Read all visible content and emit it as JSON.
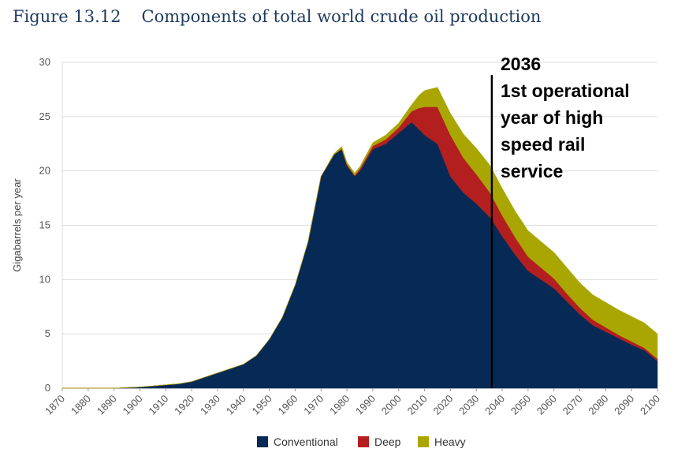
{
  "figure": {
    "number": "Figure 13.12",
    "title": "Components of total world crude oil production"
  },
  "annotation": {
    "lines": [
      "2036",
      "1st operational",
      "year of high",
      "speed rail",
      "service"
    ],
    "marker_year": 2036
  },
  "colors": {
    "conventional": "#062a55",
    "deep": "#b31f1f",
    "heavy": "#aaa601",
    "grid": "#dddddd",
    "title": "#1f3a5f"
  },
  "chart_data": {
    "type": "area",
    "stacked": true,
    "ylabel": "Gigabarrels per year",
    "xlabel": "",
    "ylim": [
      0,
      30
    ],
    "yticks": [
      0,
      5,
      10,
      15,
      20,
      25,
      30
    ],
    "xlim": [
      1870,
      2100
    ],
    "xticks": [
      1870,
      1880,
      1890,
      1900,
      1910,
      1920,
      1930,
      1940,
      1950,
      1960,
      1970,
      1980,
      1990,
      2000,
      2010,
      2020,
      2030,
      2040,
      2050,
      2060,
      2070,
      2080,
      2090,
      2100
    ],
    "grid": true,
    "legend_position": "bottom",
    "x": [
      1870,
      1880,
      1890,
      1900,
      1905,
      1910,
      1915,
      1920,
      1925,
      1930,
      1935,
      1940,
      1945,
      1950,
      1955,
      1960,
      1965,
      1970,
      1975,
      1978,
      1980,
      1983,
      1985,
      1990,
      1995,
      2000,
      2005,
      2008,
      2010,
      2015,
      2020,
      2025,
      2030,
      2035,
      2036,
      2040,
      2045,
      2050,
      2055,
      2060,
      2065,
      2070,
      2075,
      2080,
      2085,
      2090,
      2095,
      2100
    ],
    "series": [
      {
        "name": "Conventional",
        "values": [
          0,
          0,
          0,
          0.1,
          0.2,
          0.3,
          0.4,
          0.6,
          1.0,
          1.4,
          1.8,
          2.2,
          3.0,
          4.5,
          6.5,
          9.5,
          13.5,
          19.5,
          21.5,
          22.0,
          20.5,
          19.5,
          20.0,
          22.0,
          22.5,
          23.5,
          24.5,
          23.8,
          23.3,
          22.5,
          19.5,
          18.0,
          17.0,
          15.8,
          15.5,
          14.0,
          12.3,
          10.8,
          10.0,
          9.2,
          8.0,
          6.8,
          5.8,
          5.2,
          4.6,
          4.0,
          3.5,
          2.5
        ]
      },
      {
        "name": "Deep",
        "values": [
          0,
          0,
          0,
          0,
          0,
          0,
          0,
          0,
          0,
          0,
          0,
          0,
          0,
          0,
          0,
          0,
          0,
          0,
          0,
          0.05,
          0.1,
          0.1,
          0.2,
          0.3,
          0.4,
          0.5,
          1.0,
          2.0,
          2.6,
          3.4,
          3.8,
          3.2,
          2.7,
          2.3,
          2.2,
          1.9,
          1.6,
          1.3,
          1.1,
          0.9,
          0.7,
          0.6,
          0.5,
          0.4,
          0.3,
          0.3,
          0.2,
          0.2
        ]
      },
      {
        "name": "Heavy",
        "values": [
          0,
          0,
          0,
          0,
          0,
          0,
          0,
          0,
          0,
          0,
          0,
          0,
          0,
          0,
          0,
          0,
          0,
          0,
          0.1,
          0.2,
          0.2,
          0.2,
          0.2,
          0.3,
          0.4,
          0.4,
          0.6,
          1.2,
          1.5,
          1.8,
          2.0,
          2.2,
          2.4,
          2.5,
          2.5,
          2.5,
          2.4,
          2.4,
          2.4,
          2.4,
          2.4,
          2.3,
          2.3,
          2.3,
          2.3,
          2.3,
          2.3,
          2.3
        ]
      }
    ]
  }
}
